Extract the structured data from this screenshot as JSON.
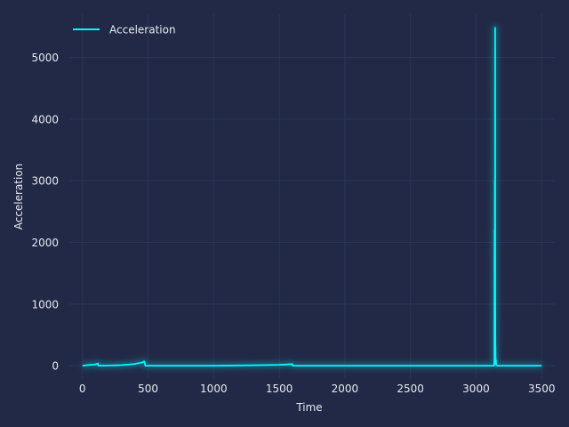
{
  "chart_data": {
    "type": "line",
    "title": "",
    "xlabel": "Time",
    "ylabel": "Acceleration",
    "xlim": [
      -100,
      3600
    ],
    "ylim": [
      -200,
      5700
    ],
    "xticks": [
      0,
      500,
      1000,
      1500,
      2000,
      2500,
      3000,
      3500
    ],
    "yticks": [
      0,
      1000,
      2000,
      3000,
      4000,
      5000
    ],
    "grid": true,
    "legend_position": "top-left",
    "colors": {
      "background": "#212946",
      "grid": "#2a3459",
      "line": "#08f7fe",
      "text": "#e6e8ef"
    },
    "series": [
      {
        "name": "Acceleration",
        "x": [
          0,
          20,
          40,
          60,
          80,
          100,
          118,
          120,
          121,
          140,
          200,
          250,
          300,
          350,
          380,
          400,
          420,
          440,
          460,
          470,
          474,
          476,
          480,
          600,
          800,
          1000,
          1200,
          1400,
          1500,
          1560,
          1590,
          1598,
          1600,
          1602,
          1650,
          1800,
          2000,
          2500,
          3000,
          3100,
          3135,
          3138,
          3140,
          3141,
          3142,
          3143,
          3144,
          3145,
          3146,
          3147,
          3148,
          3149,
          3150,
          3151,
          3152,
          3153,
          3155,
          3160,
          3165,
          3170,
          3200,
          3300,
          3400,
          3500
        ],
        "y": [
          0,
          5,
          10,
          15,
          18,
          22,
          35,
          12,
          0,
          2,
          4,
          6,
          10,
          18,
          25,
          30,
          38,
          45,
          55,
          70,
          60,
          20,
          0,
          0,
          0,
          0,
          5,
          10,
          15,
          20,
          25,
          28,
          5,
          0,
          0,
          0,
          0,
          0,
          0,
          0,
          0,
          5,
          100,
          2200,
          200,
          3000,
          400,
          5480,
          1200,
          100,
          300,
          50,
          120,
          30,
          80,
          20,
          10,
          5,
          0,
          0,
          0,
          0,
          0,
          0
        ]
      }
    ]
  }
}
